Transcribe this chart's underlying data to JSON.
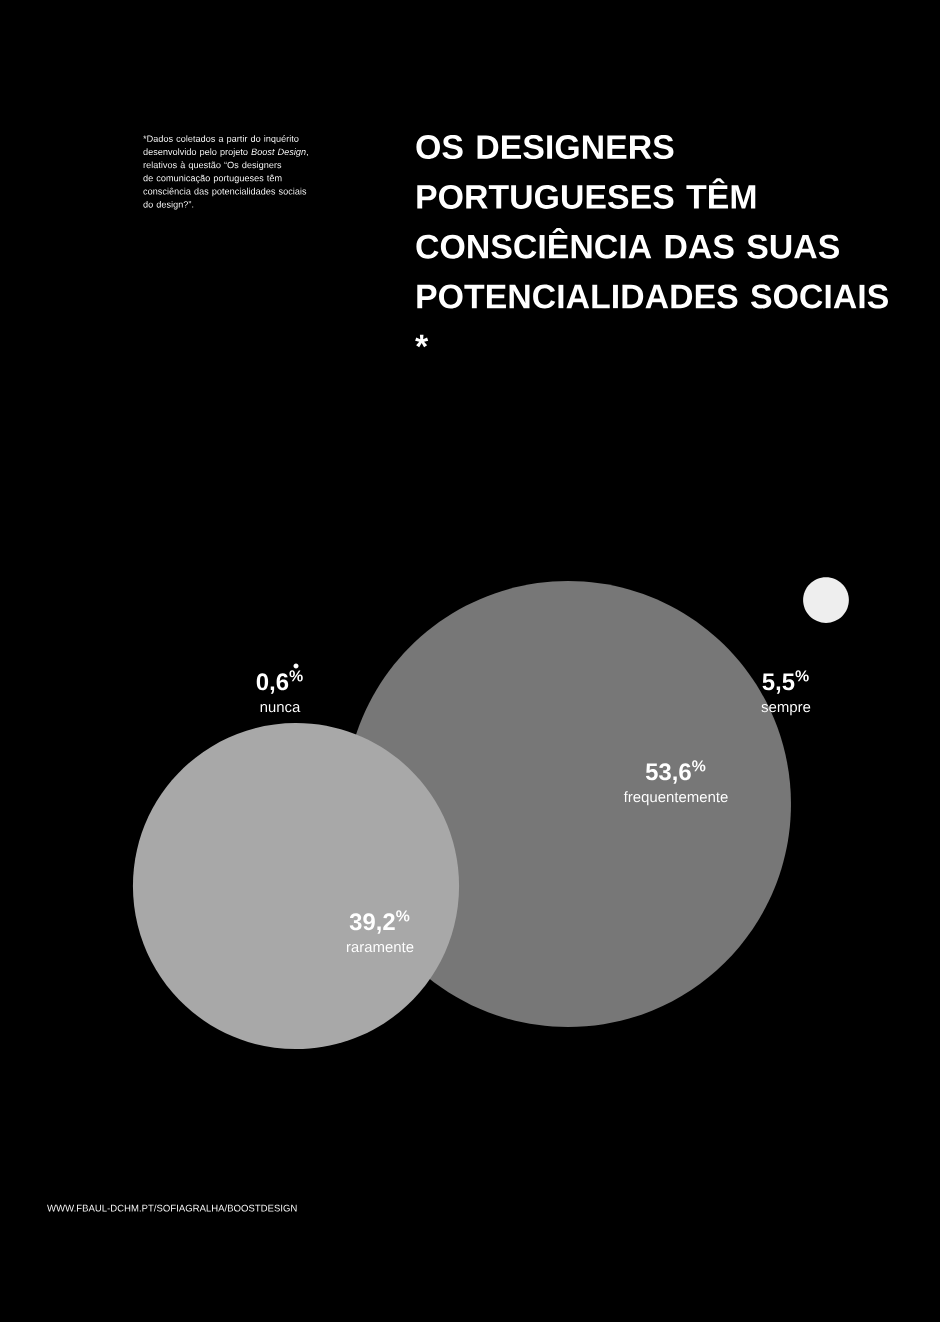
{
  "chart_data": {
    "type": "other",
    "title": "OS DESIGNERS PORTUGUESES TÊM CONSCIÊNCIA DAS SUAS POTENCIALIDADES SOCIAIS *",
    "categories": [
      "nunca",
      "sempre",
      "frequentemente",
      "raramente"
    ],
    "values": [
      0.6,
      5.5,
      53.6,
      39.2
    ],
    "value_labels": [
      "0,6$^{%}$",
      "5,5$^{%}$",
      "53,6$^{%}$",
      "39,2$^{%}$"
    ],
    "colors": [
      "#ffffff",
      "#eeeeee",
      "#777777",
      "#a8a8a8"
    ],
    "annotations": [
      "*Dados coletados a partir do inquérito desenvolvido pelo projeto *Boost Design*, relativos à questão “Os designers de comunicação portugueses têm consciência das potencialidades sociais do design?”.",
      "WWW.FBAUL-DCHM.PT/SOFIAGRALHA/BOOSTDESIGN"
    ]
  }
}
